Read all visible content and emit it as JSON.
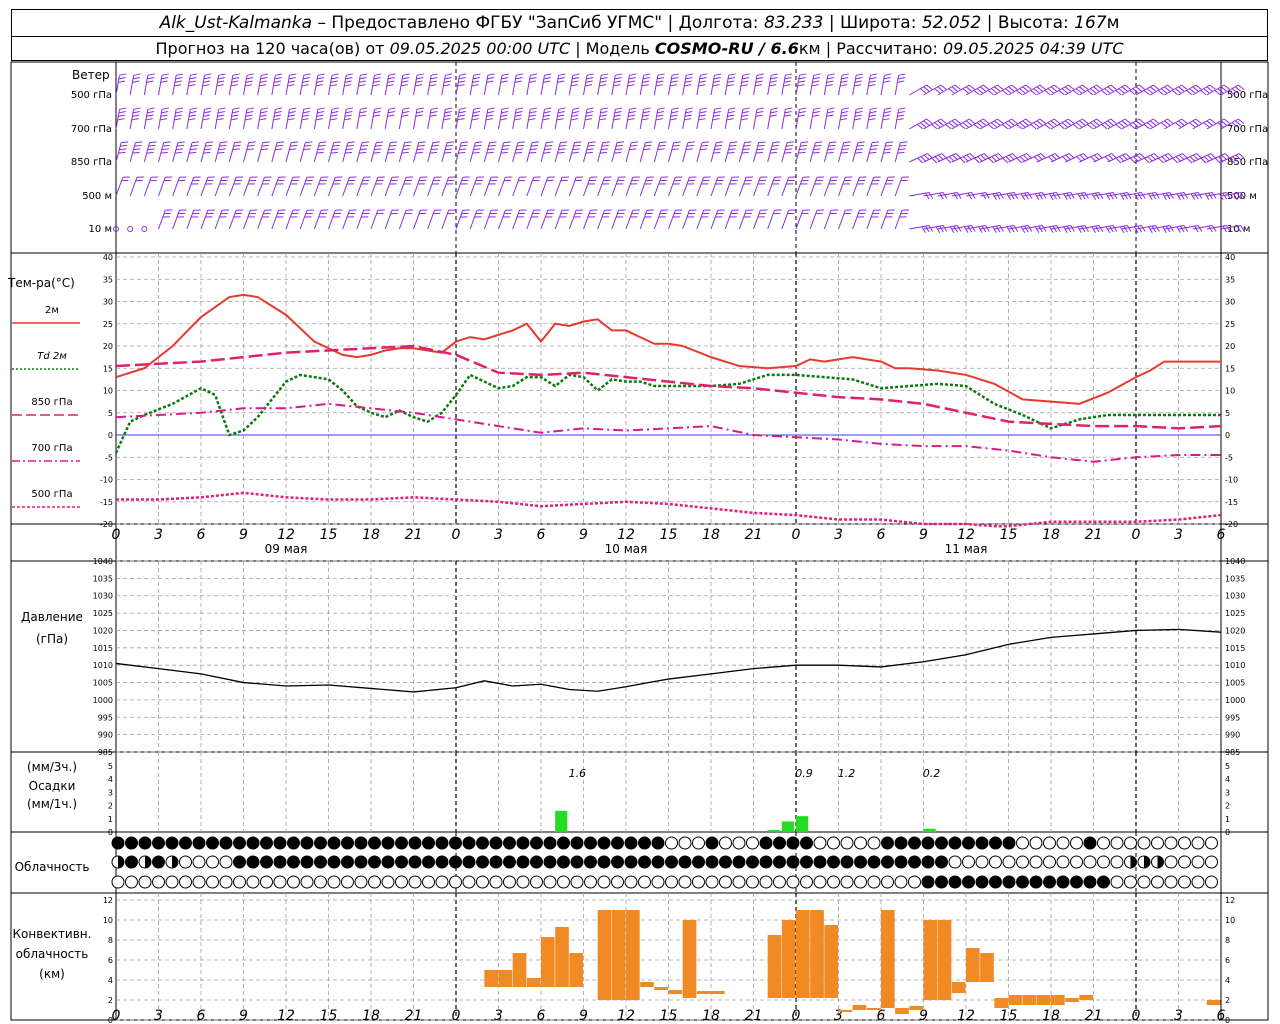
{
  "header": {
    "station": "Alk_Ust-Kalmanka",
    "provider": " – Предоставлено ФГБУ \"ЗапСиб УГМС\" | Долгота: ",
    "lon": "83.233",
    "lat_label": " | Широта: ",
    "lat": "52.052",
    "alt_label": " | Высота: ",
    "alt": "167",
    "alt_unit": "м",
    "forecast_label": "Прогноз на 120 часа(ов) от ",
    "forecast_from": "09.05.2025 00:00 UTC",
    "model_label": "  | Модель ",
    "model": "COSMO-RU / 6.6",
    "model_unit": "км",
    "calc_label": " | Рассчитано: ",
    "calc_time": "09.05.2025 04:39 UTC"
  },
  "colors": {
    "t2m": "#e8392f",
    "td2m": "#0b7a0b",
    "t850": "#e0206a",
    "t700": "#d81b8a",
    "t500": "#e0207a",
    "wind": "#8b2be0",
    "precip": "#22dd22",
    "convective": "#f08a24",
    "zero_line": "#3b3bff",
    "grid": "#a0a0a0",
    "pressure": "#000000"
  },
  "x_axis": {
    "hour_ticks": [
      "0",
      "3",
      "6",
      "9",
      "12",
      "15",
      "18",
      "21",
      "0",
      "3",
      "6",
      "9",
      "12",
      "15",
      "18",
      "21",
      "0",
      "3",
      "6",
      "9",
      "12",
      "15",
      "18",
      "21",
      "0",
      "3",
      "6"
    ],
    "day_labels": [
      {
        "text": "09 мая",
        "day_index": 0
      },
      {
        "text": "10 мая",
        "day_index": 1
      },
      {
        "text": "11 мая",
        "day_index": 2
      }
    ]
  },
  "wind_panel": {
    "title": "Ветер",
    "levels": [
      "500 гПа",
      "700 гПа",
      "850 гПа",
      "500 м",
      "10 м"
    ]
  },
  "temp_panel": {
    "title": "Тем-ра(°C)",
    "legend": [
      {
        "label": "2м",
        "style": "solid",
        "color_key": "t2m"
      },
      {
        "label": "Td  2м",
        "style": "dotted",
        "color_key": "td2m"
      },
      {
        "label": "850 гПа",
        "style": "dash",
        "color_key": "t850"
      },
      {
        "label": "700 гПа",
        "style": "dashdot",
        "color_key": "t700"
      },
      {
        "label": "500 гПа",
        "style": "dot",
        "color_key": "t500"
      }
    ],
    "yticks": [
      "40",
      "35",
      "30",
      "25",
      "20",
      "15",
      "10",
      "5",
      "0",
      "-5",
      "-10",
      "-15",
      "-20"
    ]
  },
  "pressure_panel": {
    "title": "Давление",
    "unit": "(гПа)",
    "yticks": [
      "1040",
      "1035",
      "1030",
      "1025",
      "1020",
      "1015",
      "1010",
      "1005",
      "1000",
      "995",
      "990",
      "985"
    ]
  },
  "precip_panel": {
    "unit3h": "(мм/3ч.)",
    "title": "Осадки",
    "unit1h": "(мм/1ч.)",
    "yticks": [
      "5",
      "4",
      "3",
      "2",
      "1",
      "0"
    ],
    "annotations": [
      {
        "text": "1.6",
        "hour": 32
      },
      {
        "text": "0.9",
        "hour": 48
      },
      {
        "text": "1.2",
        "hour": 51
      },
      {
        "text": "0.2",
        "hour": 57
      }
    ]
  },
  "cloud_panel": {
    "title": "Облачность"
  },
  "conv_panel": {
    "title1": "Конвективн.",
    "title2": "облачность",
    "unit": "(км)",
    "yticks": [
      "12",
      "10",
      "8",
      "6",
      "4",
      "2",
      "0"
    ]
  },
  "chart_data": {
    "type": "line",
    "x_hours_range": [
      0,
      78
    ],
    "temperature": {
      "ylim": [
        -20,
        40
      ],
      "series": [
        {
          "name": "2м",
          "x": [
            0,
            2,
            4,
            6,
            8,
            9,
            10,
            12,
            14,
            15,
            16,
            17,
            18,
            19,
            20,
            21,
            22,
            23,
            24,
            25,
            26,
            27,
            28,
            29,
            30,
            31,
            32,
            33,
            34,
            35,
            36,
            37,
            38,
            39,
            40,
            42,
            44,
            46,
            48,
            49,
            50,
            51,
            52,
            53,
            54,
            55,
            56,
            58,
            60,
            62,
            64,
            66,
            68,
            70,
            72,
            73,
            74,
            76,
            78
          ],
          "y": [
            13,
            15,
            20,
            26.5,
            31,
            31.5,
            31,
            27,
            21,
            19.5,
            18,
            17.5,
            18,
            19,
            19.5,
            19.5,
            19,
            18.5,
            21,
            22,
            21.5,
            22.5,
            23.5,
            25,
            21,
            25,
            24.5,
            25.5,
            26,
            23.5,
            23.5,
            22,
            20.5,
            20.5,
            20,
            17.5,
            15.5,
            15,
            15.5,
            17,
            16.5,
            17,
            17.5,
            17,
            16.5,
            15,
            15,
            14.5,
            13.5,
            11.5,
            8,
            7.5,
            7,
            9.5,
            13,
            14.5,
            16.5,
            16.5,
            16.5
          ]
        },
        {
          "name": "Td  2м",
          "x": [
            0,
            1,
            2,
            4,
            6,
            7,
            8,
            9,
            10,
            12,
            13,
            14,
            15,
            16,
            17,
            18,
            19,
            20,
            21,
            22,
            23,
            24,
            25,
            26,
            27,
            28,
            29,
            30,
            31,
            32,
            33,
            34,
            35,
            36,
            37,
            38,
            40,
            42,
            44,
            46,
            48,
            50,
            52,
            54,
            56,
            58,
            60,
            62,
            64,
            66,
            67,
            68,
            69,
            70,
            72,
            74,
            76,
            78
          ],
          "y": [
            -4,
            3,
            4.5,
            7,
            10.5,
            9,
            0,
            1,
            4,
            12,
            13.5,
            13,
            12.5,
            10,
            6.5,
            5,
            4,
            5.5,
            4,
            3,
            5,
            9,
            13.5,
            12,
            10.5,
            11,
            13,
            13,
            11,
            13.5,
            13,
            10,
            12.5,
            12,
            12,
            11,
            11,
            11,
            11.5,
            13.5,
            13.5,
            13,
            12.5,
            10.5,
            11,
            11.5,
            11,
            7,
            4.5,
            1.5,
            2.5,
            3.5,
            4,
            4.5,
            4.5,
            4.5,
            4.5,
            4.5
          ]
        },
        {
          "name": "850 гПа",
          "x": [
            0,
            3,
            6,
            9,
            12,
            15,
            18,
            21,
            24,
            27,
            30,
            33,
            36,
            39,
            42,
            45,
            48,
            51,
            54,
            57,
            60,
            63,
            66,
            69,
            72,
            75,
            78
          ],
          "y": [
            15.5,
            16,
            16.5,
            17.5,
            18.5,
            19,
            19.5,
            20,
            18,
            14,
            13.5,
            14,
            13,
            12,
            11,
            10.5,
            9.5,
            8.5,
            8,
            7,
            5,
            3,
            2.5,
            2,
            2,
            1.5,
            2
          ]
        },
        {
          "name": "700 гПа",
          "x": [
            0,
            3,
            6,
            9,
            12,
            15,
            18,
            21,
            24,
            27,
            30,
            33,
            36,
            39,
            42,
            45,
            48,
            51,
            54,
            57,
            60,
            63,
            66,
            69,
            72,
            75,
            78
          ],
          "y": [
            4,
            4.5,
            5,
            6,
            6,
            7,
            6,
            5,
            3.5,
            2,
            0.5,
            1.5,
            1,
            1.5,
            2,
            0,
            -0.5,
            -1,
            -2,
            -2.5,
            -2.5,
            -3.5,
            -5,
            -6,
            -5,
            -4.5,
            -4.5
          ]
        },
        {
          "name": "500 гПа",
          "x": [
            0,
            3,
            6,
            9,
            12,
            15,
            18,
            21,
            24,
            27,
            30,
            33,
            36,
            39,
            42,
            45,
            48,
            51,
            54,
            57,
            60,
            62,
            63,
            66,
            69,
            72,
            75,
            78
          ],
          "y": [
            -14.5,
            -14.5,
            -14,
            -13,
            -14,
            -14.5,
            -14.5,
            -14,
            -14.5,
            -15,
            -16,
            -15.5,
            -15,
            -15.5,
            -16.5,
            -17.5,
            -18,
            -19,
            -19,
            -20,
            -20,
            -20.5,
            -20.5,
            -19.5,
            -19.5,
            -19.5,
            -19,
            -18
          ]
        }
      ]
    },
    "pressure": {
      "ylim": [
        985,
        1040
      ],
      "series": [
        {
          "name": "давление",
          "x": [
            0,
            3,
            6,
            9,
            12,
            15,
            18,
            21,
            24,
            26,
            28,
            30,
            32,
            34,
            36,
            38,
            39,
            42,
            45,
            48,
            51,
            54,
            57,
            60,
            63,
            66,
            69,
            72,
            75,
            78
          ],
          "y": [
            1010.5,
            1009,
            1007.5,
            1005,
            1004,
            1004.3,
            1003.3,
            1002.3,
            1003.5,
            1005.5,
            1004,
            1004.5,
            1003,
            1002.5,
            1003.8,
            1005.3,
            1006,
            1007.5,
            1009,
            1010,
            1010,
            1009.5,
            1011,
            1013,
            1016,
            1018,
            1019,
            1020,
            1020.3,
            1019.5
          ]
        }
      ]
    },
    "precipitation": {
      "ylim": [
        0,
        5
      ],
      "bars": [
        {
          "hour": 31,
          "value": 1.6
        },
        {
          "hour": 46,
          "value": 0.15
        },
        {
          "hour": 47,
          "value": 0.8
        },
        {
          "hour": 48,
          "value": 1.2
        },
        {
          "hour": 57,
          "value": 0.25
        }
      ]
    },
    "cloud_cover": {
      "rows": [
        "1111111111111111111111111111111111111111100010001111000001111111111000001000000000",
        "2121200001111111111111111111111111111111111111111111111111111100000000000002220000",
        "0000000000000000000000000000000000000000000000000000000000001111111111111100000000"
      ]
    },
    "convective": {
      "ylim": [
        0,
        12
      ],
      "bars": [
        {
          "x0": 26,
          "x1": 27,
          "bot": 3.3,
          "top": 5
        },
        {
          "x0": 27,
          "x1": 28,
          "bot": 3.3,
          "top": 5
        },
        {
          "x0": 28,
          "x1": 29,
          "bot": 3.3,
          "top": 6.7
        },
        {
          "x0": 29,
          "x1": 30,
          "bot": 3.3,
          "top": 4.2
        },
        {
          "x0": 30,
          "x1": 31,
          "bot": 3.3,
          "top": 8.3
        },
        {
          "x0": 31,
          "x1": 32,
          "bot": 3.3,
          "top": 9.3
        },
        {
          "x0": 32,
          "x1": 33,
          "bot": 3.3,
          "top": 6.7
        },
        {
          "x0": 34,
          "x1": 35,
          "bot": 2,
          "top": 11
        },
        {
          "x0": 35,
          "x1": 36,
          "bot": 2,
          "top": 11
        },
        {
          "x0": 36,
          "x1": 37,
          "bot": 2,
          "top": 11
        },
        {
          "x0": 37,
          "x1": 38,
          "bot": 3.3,
          "top": 3.8
        },
        {
          "x0": 38,
          "x1": 39,
          "bot": 3,
          "top": 3.3
        },
        {
          "x0": 39,
          "x1": 40,
          "bot": 2.6,
          "top": 3
        },
        {
          "x0": 40,
          "x1": 41,
          "bot": 2.2,
          "top": 10
        },
        {
          "x0": 41,
          "x1": 42,
          "bot": 2.6,
          "top": 2.9
        },
        {
          "x0": 42,
          "x1": 43,
          "bot": 2.6,
          "top": 2.9
        },
        {
          "x0": 46,
          "x1": 47,
          "bot": 2.2,
          "top": 8.5
        },
        {
          "x0": 47,
          "x1": 48,
          "bot": 2.2,
          "top": 10
        },
        {
          "x0": 48,
          "x1": 49,
          "bot": 2.2,
          "top": 11
        },
        {
          "x0": 49,
          "x1": 50,
          "bot": 2.2,
          "top": 11
        },
        {
          "x0": 50,
          "x1": 51,
          "bot": 2.2,
          "top": 9.5
        },
        {
          "x0": 51,
          "x1": 52,
          "bot": 0.8,
          "top": 1
        },
        {
          "x0": 52,
          "x1": 53,
          "bot": 1,
          "top": 1.5
        },
        {
          "x0": 53,
          "x1": 54,
          "bot": 1,
          "top": 1.2
        },
        {
          "x0": 54,
          "x1": 55,
          "bot": 1.2,
          "top": 11
        },
        {
          "x0": 55,
          "x1": 56,
          "bot": 0.6,
          "top": 1.2
        },
        {
          "x0": 56,
          "x1": 57,
          "bot": 1,
          "top": 1.4
        },
        {
          "x0": 57,
          "x1": 58,
          "bot": 2,
          "top": 10
        },
        {
          "x0": 58,
          "x1": 59,
          "bot": 2,
          "top": 10
        },
        {
          "x0": 59,
          "x1": 60,
          "bot": 2.7,
          "top": 3.8
        },
        {
          "x0": 60,
          "x1": 61,
          "bot": 3.8,
          "top": 7.2
        },
        {
          "x0": 61,
          "x1": 62,
          "bot": 3.8,
          "top": 6.7
        },
        {
          "x0": 62,
          "x1": 63,
          "bot": 1.2,
          "top": 2.2
        },
        {
          "x0": 63,
          "x1": 64,
          "bot": 1.5,
          "top": 2.5
        },
        {
          "x0": 64,
          "x1": 65,
          "bot": 1.5,
          "top": 2.5
        },
        {
          "x0": 65,
          "x1": 66,
          "bot": 1.5,
          "top": 2.5
        },
        {
          "x0": 66,
          "x1": 67,
          "bot": 1.5,
          "top": 2.5
        },
        {
          "x0": 67,
          "x1": 68,
          "bot": 1.8,
          "top": 2.2
        },
        {
          "x0": 68,
          "x1": 69,
          "bot": 2,
          "top": 2.5
        },
        {
          "x0": 77,
          "x1": 78,
          "bot": 1.5,
          "top": 2
        }
      ]
    }
  }
}
